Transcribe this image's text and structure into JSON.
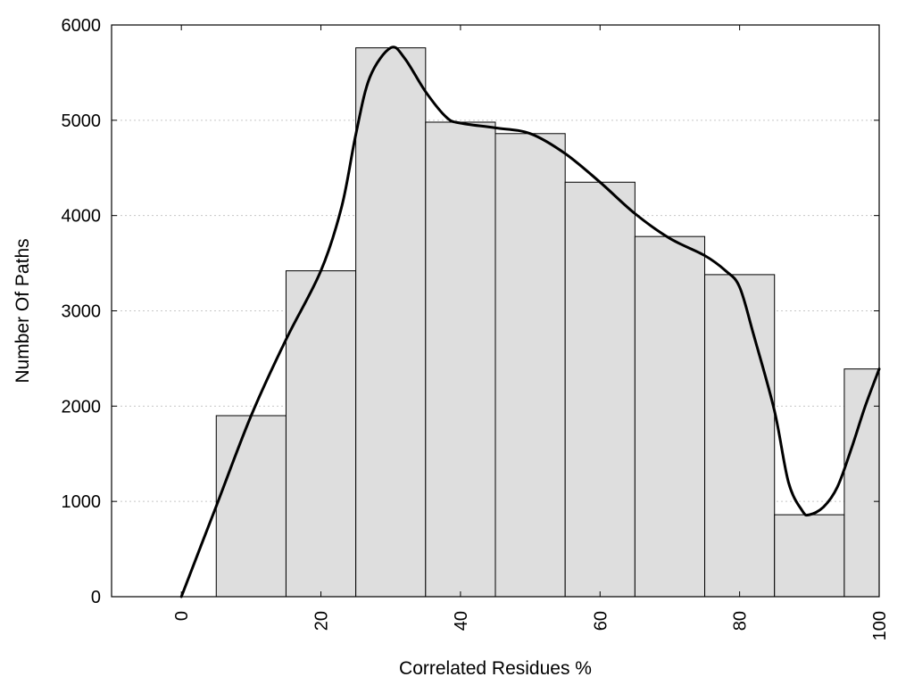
{
  "chart_data": {
    "type": "bar",
    "title": "",
    "xlabel": "Correlated Residues %",
    "ylabel": "Number Of Paths",
    "xlim": [
      -10,
      100
    ],
    "ylim": [
      0,
      6000
    ],
    "x_ticks": [
      0,
      20,
      40,
      60,
      80,
      100
    ],
    "y_ticks": [
      0,
      1000,
      2000,
      3000,
      4000,
      5000,
      6000
    ],
    "grid": "horizontal-dotted",
    "bin_width": 10,
    "bin_centers": [
      10,
      20,
      30,
      40,
      50,
      60,
      70,
      80,
      90,
      100
    ],
    "values": [
      1900,
      3420,
      5760,
      4980,
      4860,
      4350,
      3780,
      3380,
      860,
      2390
    ],
    "smooth_curve": {
      "x": [
        0,
        5,
        10,
        15,
        20,
        23,
        25,
        27,
        30,
        32,
        35,
        38,
        40,
        45,
        50,
        55,
        60,
        65,
        70,
        75,
        78,
        80,
        82,
        85,
        87,
        89,
        90,
        92,
        94,
        96,
        98,
        100
      ],
      "y": [
        0,
        950,
        1900,
        2700,
        3420,
        4100,
        4850,
        5450,
        5760,
        5650,
        5300,
        5030,
        4970,
        4920,
        4860,
        4650,
        4350,
        4020,
        3760,
        3580,
        3420,
        3250,
        2750,
        1950,
        1200,
        900,
        860,
        940,
        1150,
        1550,
        2000,
        2390
      ]
    }
  }
}
